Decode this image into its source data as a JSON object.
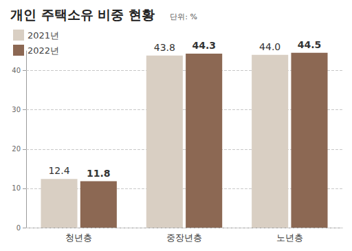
{
  "chart_data": {
    "type": "bar",
    "title": "개인 주택소유 비중 현황",
    "subtitle": "단위: %",
    "categories": [
      "청년층",
      "중장년층",
      "노년층"
    ],
    "series": [
      {
        "name": "2021년",
        "color": "#d9cfc3",
        "values": [
          12.4,
          43.8,
          44.0
        ],
        "value_labels": [
          "12.4",
          "43.8",
          "44.0"
        ]
      },
      {
        "name": "2022년",
        "color": "#8c6853",
        "values": [
          11.8,
          44.3,
          44.5
        ],
        "value_labels": [
          "11.8",
          "44.3",
          "44.5"
        ]
      }
    ],
    "ylim": [
      0,
      45
    ],
    "yticks": [
      0,
      10,
      20,
      30,
      40
    ],
    "grid": true,
    "legend": "upper left",
    "data_labels": true
  }
}
